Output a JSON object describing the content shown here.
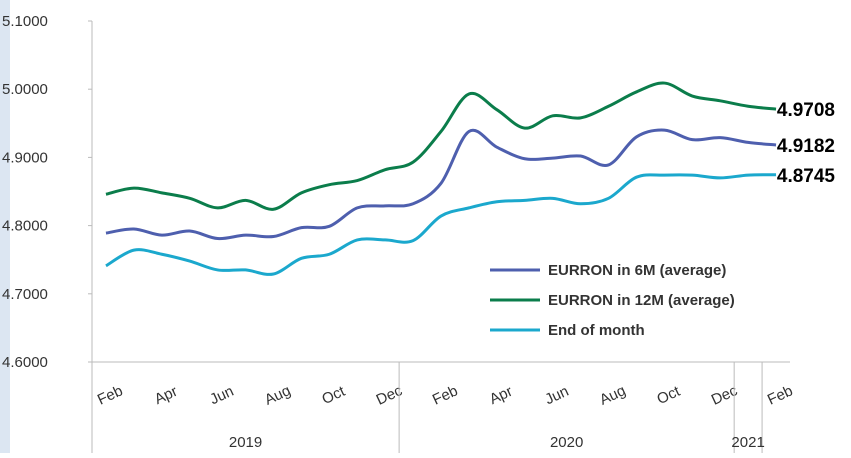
{
  "chart_data": {
    "type": "line",
    "categories": [
      "Feb",
      null,
      "Apr",
      null,
      "Jun",
      null,
      "Aug",
      null,
      "Oct",
      null,
      "Dec",
      null,
      "Feb",
      null,
      "Apr",
      null,
      "Jun",
      null,
      "Aug",
      null,
      "Oct",
      null,
      "Dec",
      null,
      "Feb"
    ],
    "years": [
      "2019",
      "2020",
      "2021"
    ],
    "series": [
      {
        "name": "EURRON in 6M (average)",
        "color": "#4e5fae",
        "values": [
          4.789,
          4.795,
          4.786,
          4.792,
          4.781,
          4.786,
          4.784,
          4.797,
          4.799,
          4.826,
          4.829,
          4.832,
          4.862,
          4.938,
          4.915,
          4.898,
          4.899,
          4.902,
          4.889,
          4.93,
          4.94,
          4.926,
          4.929,
          4.922,
          4.9182
        ]
      },
      {
        "name": "EURRON in 12M (average)",
        "color": "#0b7d4b",
        "values": [
          4.846,
          4.855,
          4.848,
          4.84,
          4.826,
          4.837,
          4.824,
          4.848,
          4.86,
          4.866,
          4.882,
          4.893,
          4.938,
          4.993,
          4.97,
          4.943,
          4.961,
          4.958,
          4.975,
          4.996,
          5.009,
          4.99,
          4.983,
          4.975,
          4.9708
        ]
      },
      {
        "name": "End of month",
        "color": "#1ba8cd",
        "values": [
          4.741,
          4.764,
          4.758,
          4.748,
          4.735,
          4.735,
          4.729,
          4.752,
          4.758,
          4.779,
          4.779,
          4.778,
          4.814,
          4.826,
          4.835,
          4.837,
          4.84,
          4.832,
          4.84,
          4.871,
          4.874,
          4.874,
          4.87,
          4.874,
          4.8745
        ]
      }
    ],
    "ylim": [
      4.6,
      5.1
    ],
    "yticks": [
      {
        "value": 4.6,
        "label": "4.6000"
      },
      {
        "value": 4.7,
        "label": "4.7000"
      },
      {
        "value": 4.8,
        "label": "4.8000"
      },
      {
        "value": 4.9,
        "label": "4.9000"
      },
      {
        "value": 5.0,
        "label": "5.0000"
      },
      {
        "value": 5.1,
        "label": "5.1000"
      }
    ],
    "grid": false,
    "legend": "lower right"
  }
}
